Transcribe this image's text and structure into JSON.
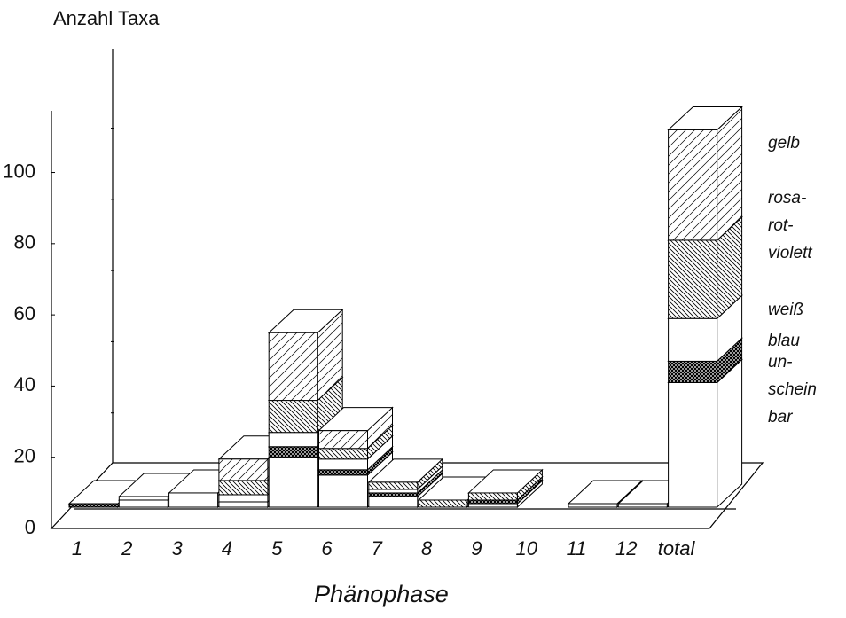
{
  "chart_data": {
    "type": "bar3d-stacked",
    "ylabel": "Anzahl Taxa",
    "xlabel": "Phänophase",
    "categories": [
      "1",
      "2",
      "3",
      "4",
      "5",
      "6",
      "7",
      "8",
      "9",
      "10",
      "11",
      "12",
      "total"
    ],
    "series": [
      {
        "name": "un-\nschein\nbar",
        "values": [
          0,
          2,
          4,
          1.5,
          14,
          9,
          3,
          0,
          1,
          0,
          0,
          0,
          35
        ]
      },
      {
        "name": "blau",
        "values": [
          1,
          0,
          0,
          0,
          3,
          1.5,
          1,
          0,
          1,
          0,
          0,
          0,
          6
        ]
      },
      {
        "name": "weiß",
        "values": [
          0,
          1,
          0,
          2,
          4,
          3,
          1,
          0,
          0,
          0,
          1,
          1,
          12
        ]
      },
      {
        "name": "rosa-\nrot-\nviolett",
        "values": [
          0,
          0,
          0,
          4,
          9,
          3,
          2,
          2,
          2,
          0,
          0,
          0,
          22
        ]
      },
      {
        "name": "gelb",
        "values": [
          0,
          0,
          0,
          6,
          19,
          5,
          0,
          0,
          0,
          0,
          0,
          0,
          31
        ]
      }
    ],
    "ylim": [
      0,
      125
    ],
    "yticks": [
      0,
      20,
      40,
      60,
      80,
      100
    ]
  }
}
